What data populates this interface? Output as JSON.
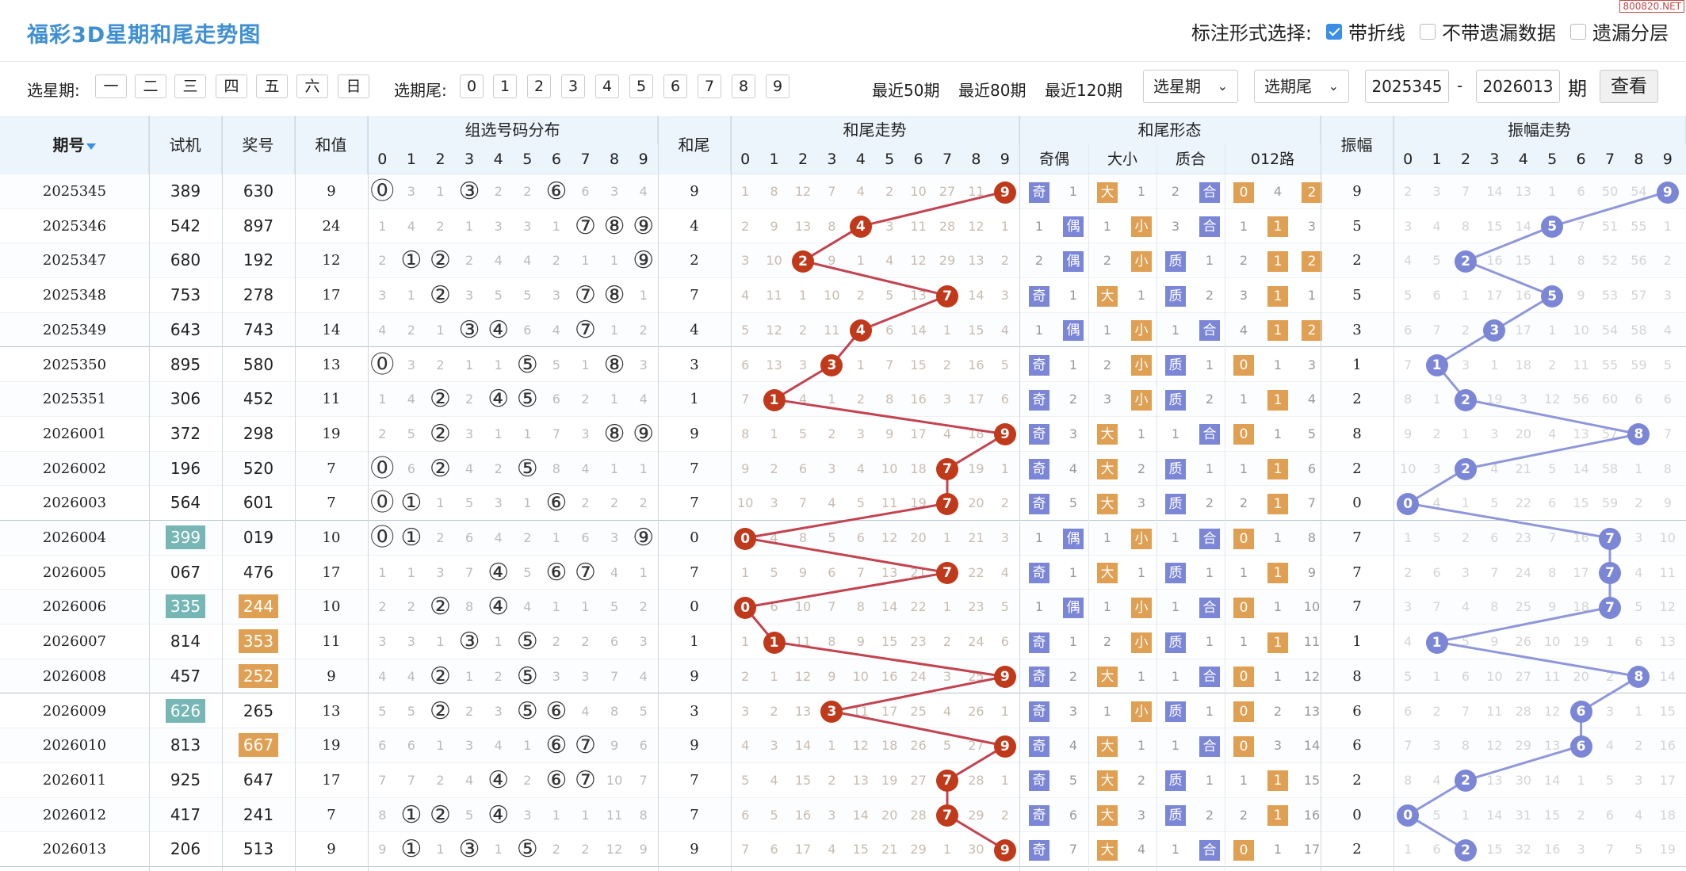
{
  "header": {
    "title": "福彩3D星期和尾走势图",
    "mark_label": "标注形式选择:",
    "mark_opts": [
      {
        "label": "带折线",
        "on": true
      },
      {
        "label": "不带遗漏数据",
        "on": false
      },
      {
        "label": "遗漏分层",
        "on": false
      }
    ],
    "watermark": "800820.NET"
  },
  "filter": {
    "week_label": "选星期:",
    "weeks": [
      "一",
      "二",
      "三",
      "四",
      "五",
      "六",
      "日"
    ],
    "tail_label": "选期尾:",
    "tails": [
      "0",
      "1",
      "2",
      "3",
      "4",
      "5",
      "6",
      "7",
      "8",
      "9"
    ],
    "quick": [
      "最近50期",
      "最近80期",
      "最近120期"
    ],
    "sel_week": "选星期",
    "sel_tail": "选期尾",
    "start": "2025345",
    "dash": "-",
    "end": "2026013",
    "period": "期",
    "query": "查看",
    "arrow": "⌄"
  },
  "headers": {
    "issue": "期号",
    "issue_icon": "sort-down-icon",
    "test": "试机",
    "prize": "奖号",
    "sum": "和值",
    "dist": "组选号码分布",
    "tail": "和尾",
    "trend": "和尾走势",
    "form": "和尾形态",
    "odd": "奇偶",
    "big": "大小",
    "prime": "质合",
    "road": "012路",
    "amp": "振幅",
    "amptrend": "振幅走势"
  },
  "colors": {
    "ball": "#c0391b",
    "blue": "#7b86d6",
    "orange": "#e0a054",
    "teal": "#76b7b5",
    "line": "#c34350",
    "bline": "#8f97d9"
  },
  "rows": [
    {
      "issue": "2025345",
      "test": "389",
      "prize": "630",
      "sum": "9",
      "tail": "9",
      "amp": "9",
      "hl_test": false,
      "hl_prize": false,
      "dist": [
        "⓪",
        "3",
        "1",
        "③",
        "2",
        "2",
        "⑥",
        "6",
        "3",
        "4"
      ],
      "trend": [
        "1",
        "8",
        "12",
        "7",
        "4",
        "2",
        "10",
        "27",
        "11",
        "9"
      ],
      "ball": 9,
      "form": [
        "奇",
        "1",
        "大",
        "1",
        "2",
        "合",
        "0",
        "4",
        "2"
      ],
      "amptrend": [
        "2",
        "3",
        "7",
        "14",
        "13",
        "1",
        "6",
        "50",
        "54",
        "9"
      ],
      "amp_ball": 9
    },
    {
      "issue": "2025346",
      "test": "542",
      "prize": "897",
      "sum": "24",
      "tail": "4",
      "amp": "5",
      "hl_test": false,
      "hl_prize": false,
      "dist": [
        "1",
        "4",
        "2",
        "1",
        "3",
        "3",
        "1",
        "⑦",
        "⑧",
        "⑨"
      ],
      "trend": [
        "2",
        "9",
        "13",
        "8",
        "4",
        "3",
        "11",
        "28",
        "12",
        "1"
      ],
      "ball": 4,
      "form": [
        "1",
        "偶",
        "1",
        "小",
        "3",
        "合",
        "1",
        "1",
        "3"
      ],
      "amptrend": [
        "3",
        "4",
        "8",
        "15",
        "14",
        "5",
        "7",
        "51",
        "55",
        "1"
      ],
      "amp_ball": 5
    },
    {
      "issue": "2025347",
      "test": "680",
      "prize": "192",
      "sum": "12",
      "tail": "2",
      "amp": "2",
      "hl_test": false,
      "hl_prize": false,
      "dist": [
        "2",
        "①",
        "②",
        "2",
        "4",
        "4",
        "2",
        "1",
        "1",
        "⑨"
      ],
      "trend": [
        "3",
        "10",
        "2",
        "9",
        "1",
        "4",
        "12",
        "29",
        "13",
        "2"
      ],
      "ball": 2,
      "form": [
        "2",
        "偶",
        "2",
        "小",
        "质",
        "1",
        "2",
        "1",
        "2"
      ],
      "amptrend": [
        "4",
        "5",
        "2",
        "16",
        "15",
        "1",
        "8",
        "52",
        "56",
        "2"
      ],
      "amp_ball": 2
    },
    {
      "issue": "2025348",
      "test": "753",
      "prize": "278",
      "sum": "17",
      "tail": "7",
      "amp": "5",
      "hl_test": false,
      "hl_prize": false,
      "dist": [
        "3",
        "1",
        "②",
        "3",
        "5",
        "5",
        "3",
        "⑦",
        "⑧",
        "1"
      ],
      "trend": [
        "4",
        "11",
        "1",
        "10",
        "2",
        "5",
        "13",
        "7",
        "14",
        "3"
      ],
      "ball": 7,
      "form": [
        "奇",
        "1",
        "大",
        "1",
        "质",
        "2",
        "3",
        "1",
        "1"
      ],
      "amptrend": [
        "5",
        "6",
        "1",
        "17",
        "16",
        "5",
        "9",
        "53",
        "57",
        "3"
      ],
      "amp_ball": 5
    },
    {
      "issue": "2025349",
      "test": "643",
      "prize": "743",
      "sum": "14",
      "tail": "4",
      "amp": "3",
      "hl_test": false,
      "hl_prize": false,
      "dist": [
        "4",
        "2",
        "1",
        "③",
        "④",
        "6",
        "4",
        "⑦",
        "1",
        "2"
      ],
      "trend": [
        "5",
        "12",
        "2",
        "11",
        "4",
        "6",
        "14",
        "1",
        "15",
        "4"
      ],
      "ball": 4,
      "form": [
        "1",
        "偶",
        "1",
        "小",
        "1",
        "合",
        "4",
        "1",
        "2"
      ],
      "amptrend": [
        "6",
        "7",
        "2",
        "3",
        "17",
        "1",
        "10",
        "54",
        "58",
        "4"
      ],
      "amp_ball": 3
    },
    {
      "issue": "2025350",
      "test": "895",
      "prize": "580",
      "sum": "13",
      "tail": "3",
      "amp": "1",
      "hl_test": false,
      "hl_prize": false,
      "dist": [
        "⓪",
        "3",
        "2",
        "1",
        "1",
        "⑤",
        "5",
        "1",
        "⑧",
        "3"
      ],
      "trend": [
        "6",
        "13",
        "3",
        "3",
        "1",
        "7",
        "15",
        "2",
        "16",
        "5"
      ],
      "ball": 3,
      "form": [
        "奇",
        "1",
        "2",
        "小",
        "质",
        "1",
        "0",
        "1",
        "3"
      ],
      "amptrend": [
        "7",
        "1",
        "3",
        "1",
        "18",
        "2",
        "11",
        "55",
        "59",
        "5"
      ],
      "amp_ball": 1
    },
    {
      "issue": "2025351",
      "test": "306",
      "prize": "452",
      "sum": "11",
      "tail": "1",
      "amp": "2",
      "hl_test": false,
      "hl_prize": false,
      "dist": [
        "1",
        "4",
        "②",
        "2",
        "④",
        "⑤",
        "6",
        "2",
        "1",
        "4"
      ],
      "trend": [
        "7",
        "1",
        "4",
        "1",
        "2",
        "8",
        "16",
        "3",
        "17",
        "6"
      ],
      "ball": 1,
      "form": [
        "奇",
        "2",
        "3",
        "小",
        "质",
        "2",
        "1",
        "1",
        "4"
      ],
      "amptrend": [
        "8",
        "1",
        "2",
        "19",
        "3",
        "12",
        "56",
        "60",
        "6",
        "6"
      ],
      "amp_ball": 2
    },
    {
      "issue": "2026001",
      "test": "372",
      "prize": "298",
      "sum": "19",
      "tail": "9",
      "amp": "8",
      "hl_test": false,
      "hl_prize": false,
      "dist": [
        "2",
        "5",
        "②",
        "3",
        "1",
        "1",
        "7",
        "3",
        "⑧",
        "⑨"
      ],
      "trend": [
        "8",
        "1",
        "5",
        "2",
        "3",
        "9",
        "17",
        "4",
        "18",
        "9"
      ],
      "ball": 9,
      "form": [
        "奇",
        "3",
        "大",
        "1",
        "1",
        "合",
        "0",
        "1",
        "5"
      ],
      "amptrend": [
        "9",
        "2",
        "1",
        "3",
        "20",
        "4",
        "13",
        "57",
        "8",
        "7"
      ],
      "amp_ball": 8
    },
    {
      "issue": "2026002",
      "test": "196",
      "prize": "520",
      "sum": "7",
      "tail": "7",
      "amp": "2",
      "hl_test": false,
      "hl_prize": false,
      "dist": [
        "⓪",
        "6",
        "②",
        "4",
        "2",
        "⑤",
        "8",
        "4",
        "1",
        "1"
      ],
      "trend": [
        "9",
        "2",
        "6",
        "3",
        "4",
        "10",
        "18",
        "7",
        "19",
        "1"
      ],
      "ball": 7,
      "form": [
        "奇",
        "4",
        "大",
        "2",
        "质",
        "1",
        "1",
        "1",
        "6"
      ],
      "amptrend": [
        "10",
        "3",
        "2",
        "4",
        "21",
        "5",
        "14",
        "58",
        "1",
        "8"
      ],
      "amp_ball": 2
    },
    {
      "issue": "2026003",
      "test": "564",
      "prize": "601",
      "sum": "7",
      "tail": "7",
      "amp": "0",
      "hl_test": false,
      "hl_prize": false,
      "dist": [
        "⓪",
        "①",
        "1",
        "5",
        "3",
        "1",
        "⑥",
        "2",
        "2",
        "2"
      ],
      "trend": [
        "10",
        "3",
        "7",
        "4",
        "5",
        "11",
        "19",
        "7",
        "20",
        "2"
      ],
      "ball": 7,
      "form": [
        "奇",
        "5",
        "大",
        "3",
        "质",
        "2",
        "2",
        "1",
        "7"
      ],
      "amptrend": [
        "0",
        "4",
        "1",
        "5",
        "22",
        "6",
        "15",
        "59",
        "2",
        "9"
      ],
      "amp_ball": 0
    },
    {
      "issue": "2026004",
      "test": "399",
      "prize": "019",
      "sum": "10",
      "tail": "0",
      "amp": "7",
      "hl_test": true,
      "hl_prize": false,
      "dist": [
        "⓪",
        "①",
        "2",
        "6",
        "4",
        "2",
        "1",
        "6",
        "3",
        "⑨"
      ],
      "trend": [
        "0",
        "4",
        "8",
        "5",
        "6",
        "12",
        "20",
        "1",
        "21",
        "3"
      ],
      "ball": 0,
      "form": [
        "1",
        "偶",
        "1",
        "小",
        "1",
        "合",
        "0",
        "1",
        "8"
      ],
      "amptrend": [
        "1",
        "5",
        "2",
        "6",
        "23",
        "7",
        "16",
        "7",
        "3",
        "10"
      ],
      "amp_ball": 7
    },
    {
      "issue": "2026005",
      "test": "067",
      "prize": "476",
      "sum": "17",
      "tail": "7",
      "amp": "7",
      "hl_test": false,
      "hl_prize": false,
      "dist": [
        "1",
        "1",
        "3",
        "7",
        "④",
        "5",
        "⑥",
        "⑦",
        "4",
        "1"
      ],
      "trend": [
        "1",
        "5",
        "9",
        "6",
        "7",
        "13",
        "21",
        "7",
        "22",
        "4"
      ],
      "ball": 7,
      "form": [
        "奇",
        "1",
        "大",
        "1",
        "质",
        "1",
        "1",
        "1",
        "9"
      ],
      "amptrend": [
        "2",
        "6",
        "3",
        "7",
        "24",
        "8",
        "17",
        "7",
        "4",
        "11"
      ],
      "amp_ball": 7
    },
    {
      "issue": "2026006",
      "test": "335",
      "prize": "244",
      "sum": "10",
      "tail": "0",
      "amp": "7",
      "hl_test": true,
      "hl_prize": true,
      "dist": [
        "2",
        "2",
        "②",
        "8",
        "④",
        "4",
        "1",
        "1",
        "5",
        "2"
      ],
      "trend": [
        "0",
        "6",
        "10",
        "7",
        "8",
        "14",
        "22",
        "1",
        "23",
        "5"
      ],
      "ball": 0,
      "form": [
        "1",
        "偶",
        "1",
        "小",
        "1",
        "合",
        "0",
        "1",
        "10"
      ],
      "amptrend": [
        "3",
        "7",
        "4",
        "8",
        "25",
        "9",
        "18",
        "7",
        "5",
        "12"
      ],
      "amp_ball": 7
    },
    {
      "issue": "2026007",
      "test": "814",
      "prize": "353",
      "sum": "11",
      "tail": "1",
      "amp": "1",
      "hl_test": false,
      "hl_prize": true,
      "dist": [
        "3",
        "3",
        "1",
        "③",
        "1",
        "⑤",
        "2",
        "2",
        "6",
        "3"
      ],
      "trend": [
        "1",
        "1",
        "11",
        "8",
        "9",
        "15",
        "23",
        "2",
        "24",
        "6"
      ],
      "ball": 1,
      "form": [
        "奇",
        "1",
        "2",
        "小",
        "质",
        "1",
        "1",
        "1",
        "11"
      ],
      "amptrend": [
        "4",
        "1",
        "5",
        "9",
        "26",
        "10",
        "19",
        "1",
        "6",
        "13"
      ],
      "amp_ball": 1
    },
    {
      "issue": "2026008",
      "test": "457",
      "prize": "252",
      "sum": "9",
      "tail": "9",
      "amp": "8",
      "hl_test": false,
      "hl_prize": true,
      "dist": [
        "4",
        "4",
        "②",
        "1",
        "2",
        "⑤",
        "3",
        "3",
        "7",
        "4"
      ],
      "trend": [
        "2",
        "1",
        "12",
        "9",
        "10",
        "16",
        "24",
        "3",
        "25",
        "9"
      ],
      "ball": 9,
      "form": [
        "奇",
        "2",
        "大",
        "1",
        "1",
        "合",
        "0",
        "1",
        "12"
      ],
      "amptrend": [
        "5",
        "1",
        "6",
        "10",
        "27",
        "11",
        "20",
        "2",
        "8",
        "14"
      ],
      "amp_ball": 8
    },
    {
      "issue": "2026009",
      "test": "626",
      "prize": "265",
      "sum": "13",
      "tail": "3",
      "amp": "6",
      "hl_test": true,
      "hl_prize": false,
      "dist": [
        "5",
        "5",
        "②",
        "2",
        "3",
        "⑤",
        "⑥",
        "4",
        "8",
        "5"
      ],
      "trend": [
        "3",
        "2",
        "13",
        "3",
        "11",
        "17",
        "25",
        "4",
        "26",
        "1"
      ],
      "ball": 3,
      "form": [
        "奇",
        "3",
        "1",
        "小",
        "质",
        "1",
        "0",
        "2",
        "13"
      ],
      "amptrend": [
        "6",
        "2",
        "7",
        "11",
        "28",
        "12",
        "6",
        "3",
        "1",
        "15"
      ],
      "amp_ball": 6
    },
    {
      "issue": "2026010",
      "test": "813",
      "prize": "667",
      "sum": "19",
      "tail": "9",
      "amp": "6",
      "hl_test": false,
      "hl_prize": true,
      "dist": [
        "6",
        "6",
        "1",
        "3",
        "4",
        "1",
        "⑥",
        "⑦",
        "9",
        "6"
      ],
      "trend": [
        "4",
        "3",
        "14",
        "1",
        "12",
        "18",
        "26",
        "5",
        "27",
        "9"
      ],
      "ball": 9,
      "form": [
        "奇",
        "4",
        "大",
        "1",
        "1",
        "合",
        "0",
        "3",
        "14"
      ],
      "amptrend": [
        "7",
        "3",
        "8",
        "12",
        "29",
        "13",
        "6",
        "4",
        "2",
        "16"
      ],
      "amp_ball": 6
    },
    {
      "issue": "2026011",
      "test": "925",
      "prize": "647",
      "sum": "17",
      "tail": "7",
      "amp": "2",
      "hl_test": false,
      "hl_prize": false,
      "dist": [
        "7",
        "7",
        "2",
        "4",
        "④",
        "2",
        "⑥",
        "⑦",
        "10",
        "7"
      ],
      "trend": [
        "5",
        "4",
        "15",
        "2",
        "13",
        "19",
        "27",
        "7",
        "28",
        "1"
      ],
      "ball": 7,
      "form": [
        "奇",
        "5",
        "大",
        "2",
        "质",
        "1",
        "1",
        "1",
        "15"
      ],
      "amptrend": [
        "8",
        "4",
        "2",
        "13",
        "30",
        "14",
        "1",
        "5",
        "3",
        "17"
      ],
      "amp_ball": 2
    },
    {
      "issue": "2026012",
      "test": "417",
      "prize": "241",
      "sum": "7",
      "tail": "7",
      "amp": "0",
      "hl_test": false,
      "hl_prize": false,
      "dist": [
        "8",
        "①",
        "②",
        "5",
        "④",
        "3",
        "1",
        "1",
        "11",
        "8"
      ],
      "trend": [
        "6",
        "5",
        "16",
        "3",
        "14",
        "20",
        "28",
        "7",
        "29",
        "2"
      ],
      "ball": 7,
      "form": [
        "奇",
        "6",
        "大",
        "3",
        "质",
        "2",
        "2",
        "1",
        "16"
      ],
      "amptrend": [
        "0",
        "5",
        "1",
        "14",
        "31",
        "15",
        "2",
        "6",
        "4",
        "18"
      ],
      "amp_ball": 0
    },
    {
      "issue": "2026013",
      "test": "206",
      "prize": "513",
      "sum": "9",
      "tail": "9",
      "amp": "2",
      "hl_test": false,
      "hl_prize": false,
      "dist": [
        "9",
        "①",
        "1",
        "③",
        "1",
        "⑤",
        "2",
        "2",
        "12",
        "9"
      ],
      "trend": [
        "7",
        "6",
        "17",
        "4",
        "15",
        "21",
        "29",
        "1",
        "30",
        "9"
      ],
      "ball": 9,
      "form": [
        "奇",
        "7",
        "大",
        "4",
        "1",
        "合",
        "0",
        "1",
        "17"
      ],
      "amptrend": [
        "1",
        "6",
        "2",
        "15",
        "32",
        "16",
        "3",
        "7",
        "5",
        "19"
      ],
      "amp_ball": 2
    }
  ]
}
